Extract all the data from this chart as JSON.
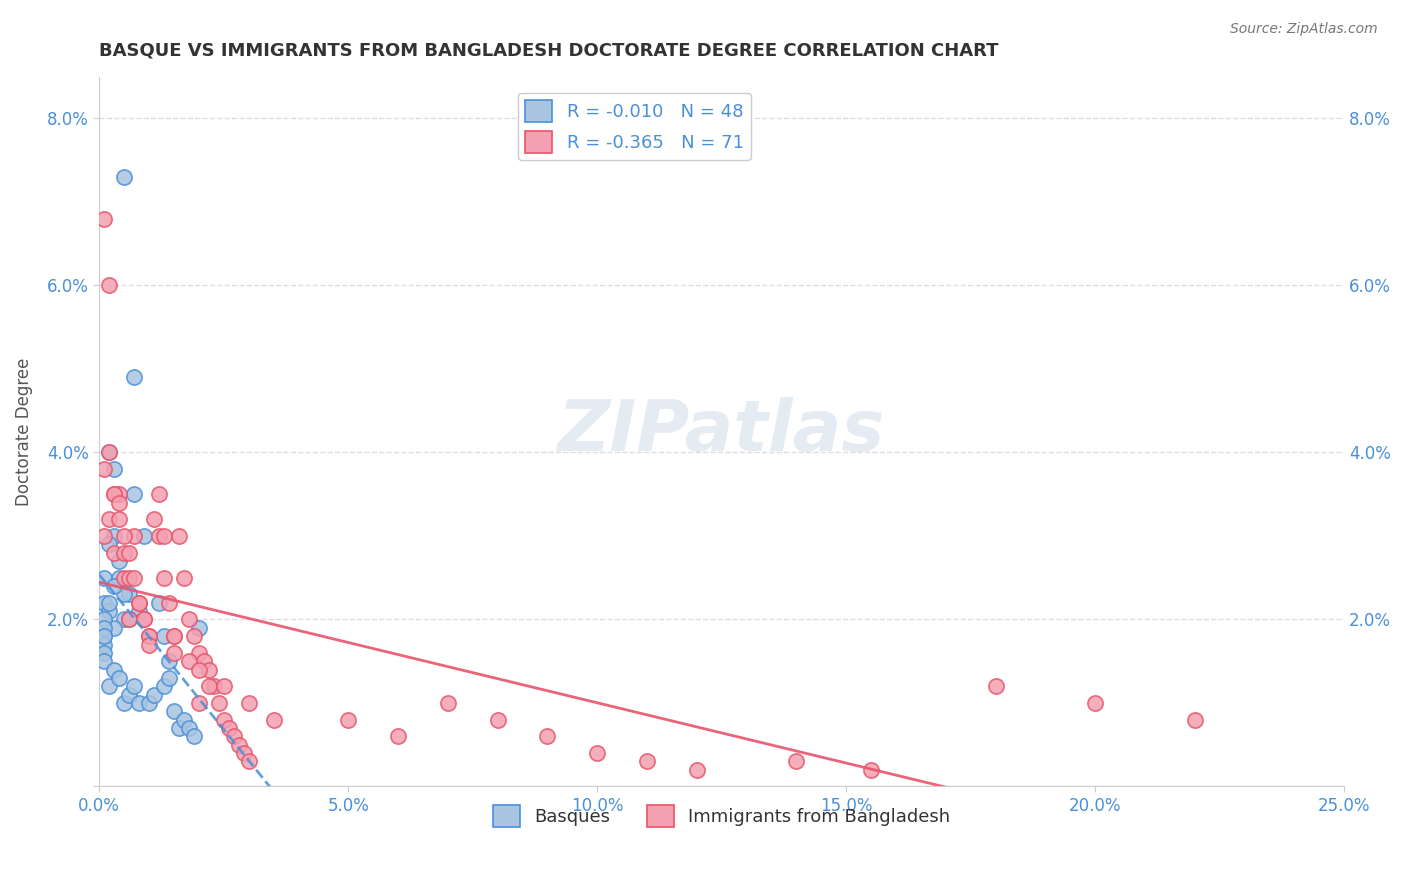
{
  "title": "BASQUE VS IMMIGRANTS FROM BANGLADESH DOCTORATE DEGREE CORRELATION CHART",
  "source": "Source: ZipAtlas.com",
  "ylabel": "Doctorate Degree",
  "xlabel": "",
  "xlim": [
    0.0,
    0.25
  ],
  "ylim": [
    0.0,
    0.085
  ],
  "xticks": [
    0.0,
    0.05,
    0.1,
    0.15,
    0.2,
    0.25
  ],
  "yticks": [
    0.0,
    0.02,
    0.04,
    0.06,
    0.08
  ],
  "xticklabels": [
    "0.0%",
    "5.0%",
    "10.0%",
    "15.0%",
    "20.0%",
    "25.0%"
  ],
  "yticklabels": [
    "",
    "2.0%",
    "4.0%",
    "6.0%",
    "8.0%"
  ],
  "blue_R": "-0.010",
  "blue_N": "48",
  "pink_R": "-0.365",
  "pink_N": "71",
  "blue_color": "#a8c4e0",
  "pink_color": "#f4a0b0",
  "blue_line_color": "#4a90d9",
  "pink_line_color": "#e8546a",
  "background_color": "#ffffff",
  "grid_color": "#dddddd",
  "title_color": "#333333",
  "watermark": "ZIPatlas",
  "legend_label_blue": "Basques",
  "legend_label_pink": "Immigrants from Bangladesh",
  "blue_scatter_x": [
    0.005,
    0.003,
    0.002,
    0.001,
    0.001,
    0.008,
    0.006,
    0.004,
    0.003,
    0.002,
    0.001,
    0.001,
    0.012,
    0.009,
    0.007,
    0.006,
    0.005,
    0.004,
    0.003,
    0.002,
    0.001,
    0.001,
    0.001,
    0.001,
    0.001,
    0.002,
    0.003,
    0.004,
    0.005,
    0.006,
    0.007,
    0.008,
    0.01,
    0.011,
    0.013,
    0.014,
    0.015,
    0.016,
    0.017,
    0.018,
    0.019,
    0.014,
    0.013,
    0.005,
    0.007,
    0.003,
    0.002,
    0.02
  ],
  "blue_scatter_y": [
    0.02,
    0.038,
    0.04,
    0.025,
    0.022,
    0.021,
    0.023,
    0.027,
    0.019,
    0.021,
    0.018,
    0.02,
    0.022,
    0.03,
    0.035,
    0.02,
    0.023,
    0.025,
    0.024,
    0.022,
    0.019,
    0.017,
    0.016,
    0.018,
    0.015,
    0.012,
    0.014,
    0.013,
    0.01,
    0.011,
    0.012,
    0.01,
    0.01,
    0.011,
    0.012,
    0.013,
    0.009,
    0.007,
    0.008,
    0.007,
    0.006,
    0.015,
    0.018,
    0.073,
    0.049,
    0.03,
    0.029,
    0.019
  ],
  "pink_scatter_x": [
    0.001,
    0.002,
    0.003,
    0.004,
    0.005,
    0.006,
    0.001,
    0.002,
    0.003,
    0.004,
    0.005,
    0.006,
    0.007,
    0.008,
    0.009,
    0.01,
    0.011,
    0.012,
    0.013,
    0.014,
    0.015,
    0.016,
    0.017,
    0.018,
    0.019,
    0.02,
    0.021,
    0.022,
    0.023,
    0.024,
    0.025,
    0.026,
    0.027,
    0.028,
    0.029,
    0.03,
    0.001,
    0.002,
    0.003,
    0.004,
    0.005,
    0.006,
    0.007,
    0.008,
    0.009,
    0.01,
    0.012,
    0.013,
    0.015,
    0.018,
    0.02,
    0.022,
    0.05,
    0.06,
    0.07,
    0.08,
    0.09,
    0.1,
    0.11,
    0.12,
    0.14,
    0.155,
    0.18,
    0.2,
    0.22,
    0.01,
    0.015,
    0.02,
    0.025,
    0.03,
    0.035
  ],
  "pink_scatter_y": [
    0.03,
    0.032,
    0.028,
    0.035,
    0.025,
    0.02,
    0.038,
    0.04,
    0.035,
    0.032,
    0.028,
    0.025,
    0.03,
    0.022,
    0.02,
    0.018,
    0.032,
    0.03,
    0.025,
    0.022,
    0.018,
    0.03,
    0.025,
    0.02,
    0.018,
    0.016,
    0.015,
    0.014,
    0.012,
    0.01,
    0.008,
    0.007,
    0.006,
    0.005,
    0.004,
    0.003,
    0.068,
    0.06,
    0.035,
    0.034,
    0.03,
    0.028,
    0.025,
    0.022,
    0.02,
    0.018,
    0.035,
    0.03,
    0.018,
    0.015,
    0.01,
    0.012,
    0.008,
    0.006,
    0.01,
    0.008,
    0.006,
    0.004,
    0.003,
    0.002,
    0.003,
    0.002,
    0.012,
    0.01,
    0.008,
    0.017,
    0.016,
    0.014,
    0.012,
    0.01,
    0.008
  ]
}
